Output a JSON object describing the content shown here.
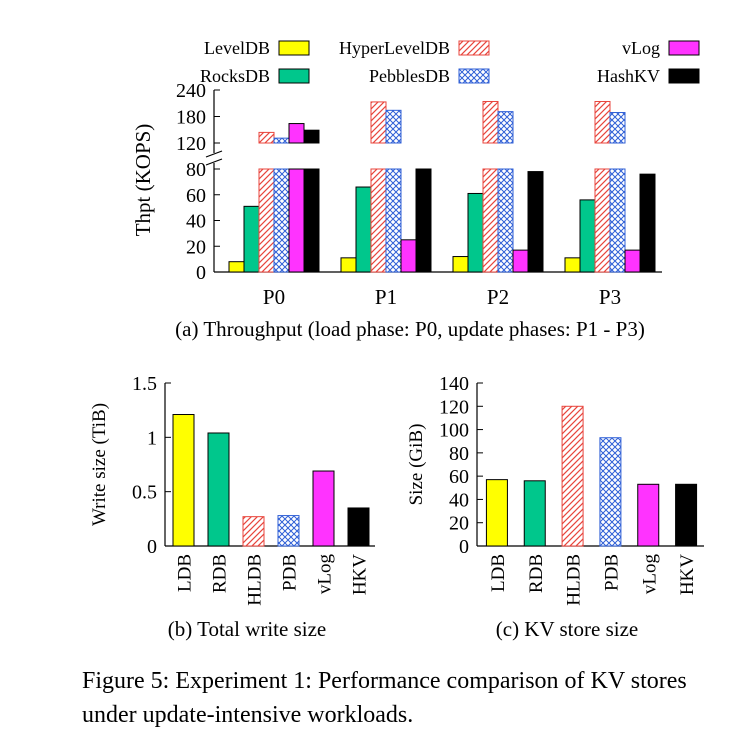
{
  "figure_caption": "Figure 5: Experiment 1: Performance comparison of KV stores under update-intensive workloads.",
  "legend": [
    {
      "name": "LevelDB",
      "color": "#ffff00",
      "pattern": "solid"
    },
    {
      "name": "RocksDB",
      "color": "#00c78c",
      "pattern": "solid"
    },
    {
      "name": "HyperLevelDB",
      "color": "#e8453c",
      "pattern": "diagonal"
    },
    {
      "name": "PebblesDB",
      "color": "#2f5fd6",
      "pattern": "crosshatch"
    },
    {
      "name": "vLog",
      "color": "#ff33ff",
      "pattern": "solid"
    },
    {
      "name": "HashKV",
      "color": "#000000",
      "pattern": "solid"
    }
  ],
  "chart_data": [
    {
      "id": "a",
      "type": "bar",
      "caption": "(a) Throughput (load phase: P0, update phases: P1 - P3)",
      "ylabel": "Thpt (KOPS)",
      "xlabel": "",
      "categories": [
        "P0",
        "P1",
        "P2",
        "P3"
      ],
      "broken_axis": true,
      "lower_ylim": [
        0,
        80
      ],
      "lower_yticks": [
        0,
        20,
        40,
        60,
        80
      ],
      "upper_ylim": [
        120,
        240
      ],
      "upper_yticks": [
        120,
        180,
        240
      ],
      "series": [
        {
          "name": "LevelDB",
          "values": [
            8,
            11,
            12,
            11
          ]
        },
        {
          "name": "RocksDB",
          "values": [
            51,
            66,
            61,
            56
          ]
        },
        {
          "name": "HyperLevelDB",
          "values": [
            144,
            213,
            214,
            214
          ]
        },
        {
          "name": "PebblesDB",
          "values": [
            131,
            194,
            191,
            189
          ]
        },
        {
          "name": "vLog",
          "values": [
            164,
            25,
            17,
            17
          ]
        },
        {
          "name": "HashKV",
          "values": [
            149,
            80,
            78,
            76
          ]
        }
      ]
    },
    {
      "id": "b",
      "type": "bar",
      "caption": "(b) Total write size",
      "ylabel": "Write size (TiB)",
      "xlabel": "",
      "categories": [
        "LDB",
        "RDB",
        "HLDB",
        "PDB",
        "vLog",
        "HKV"
      ],
      "values": [
        1.21,
        1.04,
        0.27,
        0.28,
        0.69,
        0.35
      ],
      "ylim": [
        0,
        1.5
      ],
      "yticks": [
        "0",
        "0.5",
        "1",
        "1.5"
      ]
    },
    {
      "id": "c",
      "type": "bar",
      "caption": "(c) KV store size",
      "ylabel": "Size (GiB)",
      "xlabel": "",
      "categories": [
        "LDB",
        "RDB",
        "HLDB",
        "PDB",
        "vLog",
        "HKV"
      ],
      "values": [
        57,
        56,
        120,
        93,
        53,
        53
      ],
      "ylim": [
        0,
        140
      ],
      "yticks": [
        "0",
        "20",
        "40",
        "60",
        "80",
        "100",
        "120",
        "140"
      ]
    }
  ]
}
